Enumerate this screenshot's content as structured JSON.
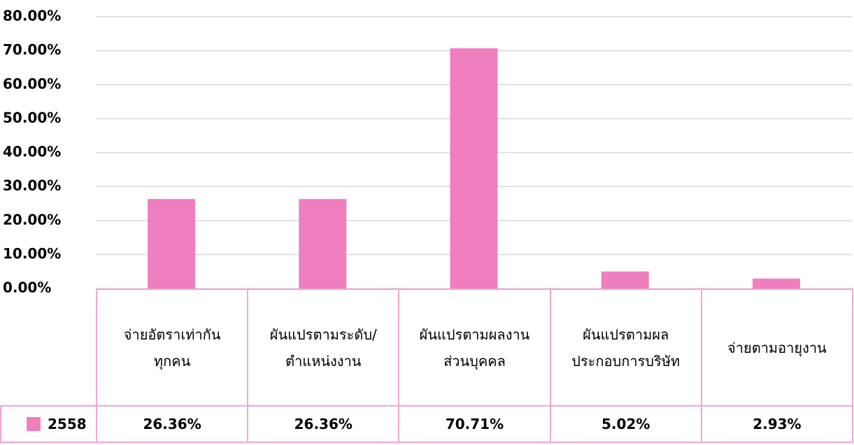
{
  "chart_data": {
    "type": "bar",
    "categories": [
      "จ่ายอัตราเท่ากันทุกคน",
      "ผันแปรตามระดับ/ตำแหน่งงาน",
      "ผันแปรตามผลงานส่วนบุคคล",
      "ผันแปรตามผลประกอบการบริษัท",
      "จ่ายตามอายุงาน"
    ],
    "series": [
      {
        "name": "2558",
        "color": "#f07fc0",
        "values": [
          26.36,
          26.36,
          70.71,
          5.02,
          2.93
        ],
        "value_labels": [
          "26.36%",
          "26.36%",
          "70.71%",
          "5.02%",
          "2.93%"
        ]
      }
    ],
    "ylim": [
      0,
      80
    ],
    "yticks": [
      {
        "value": 0,
        "label": "0.00%"
      },
      {
        "value": 10,
        "label": "10.00%"
      },
      {
        "value": 20,
        "label": "20.00%"
      },
      {
        "value": 30,
        "label": "30.00%"
      },
      {
        "value": 40,
        "label": "40.00%"
      },
      {
        "value": 50,
        "label": "50.00%"
      },
      {
        "value": 60,
        "label": "60.00%"
      },
      {
        "value": 70,
        "label": "70.00%"
      },
      {
        "value": 80,
        "label": "80.00%"
      }
    ],
    "grid": true
  }
}
